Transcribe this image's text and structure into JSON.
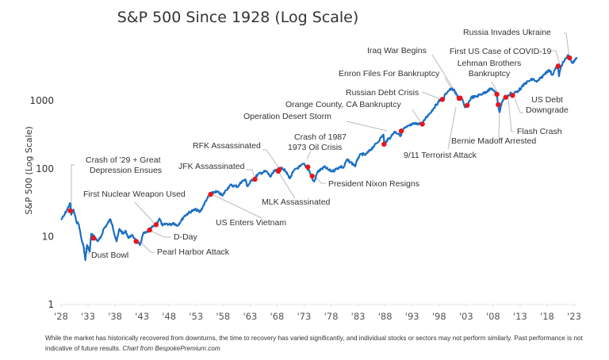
{
  "chart_data": {
    "type": "line",
    "title": "S&P 500 Since 1928 (Log Scale)",
    "xlabel": "",
    "ylabel": "S&P 500 (Log Scale)",
    "yscale": "log",
    "ylim": [
      1,
      5000
    ],
    "xlim": [
      1928,
      2023.5
    ],
    "y_ticks": [
      {
        "value": 1,
        "label": "1"
      },
      {
        "value": 10,
        "label": "10"
      },
      {
        "value": 100,
        "label": "100"
      },
      {
        "value": 1000,
        "label": "1000"
      }
    ],
    "x_ticks": [
      {
        "value": 1928,
        "label": "'28"
      },
      {
        "value": 1933,
        "label": "'33"
      },
      {
        "value": 1938,
        "label": "'38"
      },
      {
        "value": 1943,
        "label": "'43"
      },
      {
        "value": 1948,
        "label": "'48"
      },
      {
        "value": 1953,
        "label": "'53"
      },
      {
        "value": 1958,
        "label": "'58"
      },
      {
        "value": 1963,
        "label": "'63"
      },
      {
        "value": 1968,
        "label": "'68"
      },
      {
        "value": 1973,
        "label": "'73"
      },
      {
        "value": 1978,
        "label": "'78"
      },
      {
        "value": 1983,
        "label": "'83"
      },
      {
        "value": 1988,
        "label": "'88"
      },
      {
        "value": 1993,
        "label": "'93"
      },
      {
        "value": 1998,
        "label": "'98"
      },
      {
        "value": 2003,
        "label": "'03"
      },
      {
        "value": 2008,
        "label": "'08"
      },
      {
        "value": 2013,
        "label": "'13"
      },
      {
        "value": 2018,
        "label": "'18"
      },
      {
        "value": 2023,
        "label": "'23"
      }
    ],
    "grid": false,
    "series": [
      {
        "name": "S&P 500",
        "color": "#1a6fc4",
        "points": [
          [
            1928.0,
            17.7
          ],
          [
            1928.5,
            20
          ],
          [
            1929.0,
            24
          ],
          [
            1929.7,
            31
          ],
          [
            1929.9,
            21
          ],
          [
            1930.3,
            25
          ],
          [
            1930.8,
            17
          ],
          [
            1931.3,
            15
          ],
          [
            1931.8,
            9
          ],
          [
            1932.2,
            7
          ],
          [
            1932.5,
            4.5
          ],
          [
            1932.8,
            7.5
          ],
          [
            1933.3,
            6
          ],
          [
            1933.6,
            11
          ],
          [
            1934.2,
            10
          ],
          [
            1934.8,
            8.5
          ],
          [
            1935.3,
            9.5
          ],
          [
            1935.9,
            13
          ],
          [
            1936.5,
            15
          ],
          [
            1937.1,
            18
          ],
          [
            1937.5,
            15
          ],
          [
            1938.0,
            10
          ],
          [
            1938.3,
            8.5
          ],
          [
            1938.8,
            13
          ],
          [
            1939.5,
            11
          ],
          [
            1940.0,
            12
          ],
          [
            1940.5,
            9.5
          ],
          [
            1941.0,
            10.5
          ],
          [
            1941.6,
            9.5
          ],
          [
            1942.3,
            8
          ],
          [
            1942.6,
            7.5
          ],
          [
            1943.2,
            11
          ],
          [
            1943.8,
            11.5
          ],
          [
            1944.4,
            12.5
          ],
          [
            1945.0,
            14
          ],
          [
            1945.6,
            15
          ],
          [
            1946.2,
            18.5
          ],
          [
            1946.8,
            14.5
          ],
          [
            1947.5,
            15.5
          ],
          [
            1948.2,
            15
          ],
          [
            1948.8,
            16
          ],
          [
            1949.5,
            14.5
          ],
          [
            1950.2,
            17
          ],
          [
            1950.8,
            20
          ],
          [
            1951.5,
            22
          ],
          [
            1952.3,
            24
          ],
          [
            1953.0,
            25
          ],
          [
            1953.7,
            23
          ],
          [
            1954.3,
            28
          ],
          [
            1955.0,
            36
          ],
          [
            1955.7,
            42
          ],
          [
            1956.5,
            46
          ],
          [
            1957.3,
            44
          ],
          [
            1957.9,
            40
          ],
          [
            1958.5,
            48
          ],
          [
            1959.3,
            57
          ],
          [
            1960.0,
            56
          ],
          [
            1960.8,
            55
          ],
          [
            1961.5,
            66
          ],
          [
            1962.2,
            68
          ],
          [
            1962.5,
            55
          ],
          [
            1963.2,
            66
          ],
          [
            1963.9,
            74
          ],
          [
            1964.5,
            83
          ],
          [
            1965.3,
            88
          ],
          [
            1966.0,
            92
          ],
          [
            1966.8,
            76
          ],
          [
            1967.5,
            93
          ],
          [
            1968.3,
            95
          ],
          [
            1968.9,
            104
          ],
          [
            1969.5,
            93
          ],
          [
            1970.4,
            72
          ],
          [
            1970.9,
            88
          ],
          [
            1971.5,
            100
          ],
          [
            1972.3,
            108
          ],
          [
            1972.9,
            118
          ],
          [
            1973.5,
            104
          ],
          [
            1974.0,
            92
          ],
          [
            1974.6,
            68
          ],
          [
            1974.9,
            65
          ],
          [
            1975.5,
            90
          ],
          [
            1976.3,
            100
          ],
          [
            1976.9,
            106
          ],
          [
            1977.6,
            95
          ],
          [
            1978.3,
            92
          ],
          [
            1979.0,
            100
          ],
          [
            1979.8,
            108
          ],
          [
            1980.3,
            103
          ],
          [
            1980.9,
            135
          ],
          [
            1981.6,
            125
          ],
          [
            1982.5,
            110
          ],
          [
            1983.0,
            145
          ],
          [
            1983.6,
            165
          ],
          [
            1984.4,
            160
          ],
          [
            1985.0,
            180
          ],
          [
            1985.8,
            210
          ],
          [
            1986.5,
            240
          ],
          [
            1987.3,
            290
          ],
          [
            1987.7,
            320
          ],
          [
            1987.85,
            230
          ],
          [
            1988.3,
            260
          ],
          [
            1989.0,
            290
          ],
          [
            1989.7,
            350
          ],
          [
            1990.5,
            330
          ],
          [
            1990.8,
            300
          ],
          [
            1991.3,
            380
          ],
          [
            1992.0,
            410
          ],
          [
            1993.0,
            450
          ],
          [
            1994.0,
            465
          ],
          [
            1994.9,
            455
          ],
          [
            1995.5,
            560
          ],
          [
            1996.3,
            660
          ],
          [
            1997.0,
            780
          ],
          [
            1997.8,
            950
          ],
          [
            1998.5,
            1100
          ],
          [
            1998.7,
            990
          ],
          [
            1999.2,
            1280
          ],
          [
            1999.8,
            1420
          ],
          [
            2000.2,
            1500
          ],
          [
            2000.7,
            1450
          ],
          [
            2001.2,
            1250
          ],
          [
            2001.7,
            1100
          ],
          [
            2002.2,
            1080
          ],
          [
            2002.6,
            880
          ],
          [
            2002.8,
            800
          ],
          [
            2003.3,
            900
          ],
          [
            2004.0,
            1130
          ],
          [
            2004.8,
            1150
          ],
          [
            2005.5,
            1230
          ],
          [
            2006.3,
            1300
          ],
          [
            2007.0,
            1420
          ],
          [
            2007.8,
            1520
          ],
          [
            2008.3,
            1350
          ],
          [
            2008.7,
            1250
          ],
          [
            2008.9,
            900
          ],
          [
            2009.2,
            680
          ],
          [
            2009.6,
            950
          ],
          [
            2010.2,
            1150
          ],
          [
            2010.4,
            1080
          ],
          [
            2010.9,
            1200
          ],
          [
            2011.3,
            1330
          ],
          [
            2011.6,
            1200
          ],
          [
            2012.0,
            1320
          ],
          [
            2012.6,
            1400
          ],
          [
            2013.2,
            1550
          ],
          [
            2013.9,
            1800
          ],
          [
            2014.6,
            1950
          ],
          [
            2015.4,
            2100
          ],
          [
            2015.9,
            1950
          ],
          [
            2016.1,
            1900
          ],
          [
            2016.8,
            2150
          ],
          [
            2017.5,
            2450
          ],
          [
            2018.0,
            2750
          ],
          [
            2018.5,
            2800
          ],
          [
            2018.95,
            2400
          ],
          [
            2019.5,
            2950
          ],
          [
            2020.0,
            3250
          ],
          [
            2020.2,
            2300
          ],
          [
            2020.6,
            3300
          ],
          [
            2021.2,
            3900
          ],
          [
            2021.9,
            4700
          ],
          [
            2022.15,
            4400
          ],
          [
            2022.5,
            3800
          ],
          [
            2022.8,
            3600
          ],
          [
            2023.2,
            4000
          ],
          [
            2023.5,
            4400
          ]
        ]
      }
    ],
    "annotations": [
      {
        "label": "Crash of '29 + Great",
        "label2": "Depression Ensues",
        "year": 1929.7,
        "value": 24
      },
      {
        "label": "Dust Bowl",
        "label2": "",
        "year": 1934.0,
        "value": 9.5
      },
      {
        "label": "First Nuclear Weapon Used",
        "label2": "",
        "year": 1945.6,
        "value": 15
      },
      {
        "label": "D-Day",
        "label2": "",
        "year": 1944.4,
        "value": 12.5
      },
      {
        "label": "Pearl Harbor Attack",
        "label2": "",
        "year": 1941.9,
        "value": 8.5
      },
      {
        "label": "US Enters Vietnam",
        "label2": "",
        "year": 1955.7,
        "value": 42
      },
      {
        "label": "JFK Assassinated",
        "label2": "",
        "year": 1963.9,
        "value": 70
      },
      {
        "label": "RFK Assassinated",
        "label2": "",
        "year": 1968.4,
        "value": 97
      },
      {
        "label": "MLK Assassinated",
        "label2": "",
        "year": 1968.2,
        "value": 92
      },
      {
        "label": "Crash of 1987",
        "label2": "",
        "year": 1987.8,
        "value": 230
      },
      {
        "label": "1973 Oil Crisis",
        "label2": "",
        "year": 1973.7,
        "value": 106
      },
      {
        "label": "President Nixon Resigns",
        "label2": "",
        "year": 1974.5,
        "value": 78
      },
      {
        "label": "Operation Desert Storm",
        "label2": "",
        "year": 1991.0,
        "value": 360
      },
      {
        "label": "Orange County, CA Bankruptcy",
        "label2": "",
        "year": 1994.9,
        "value": 455
      },
      {
        "label": "Russian Debt Crisis",
        "label2": "",
        "year": 1998.6,
        "value": 1050
      },
      {
        "label": "Enron Files For Bankruptcy",
        "label2": "",
        "year": 2001.9,
        "value": 1100
      },
      {
        "label": "Iraq War Begins",
        "label2": "",
        "year": 2003.2,
        "value": 860
      },
      {
        "label": "9/11 Terrorist Attack",
        "label2": "",
        "year": 2001.7,
        "value": 1090
      },
      {
        "label": "Lehman Brothers",
        "label2": "Bankruptcy",
        "year": 2008.7,
        "value": 1250
      },
      {
        "label": "Bernie Madoff Arrested",
        "label2": "",
        "year": 2008.95,
        "value": 880
      },
      {
        "label": "Flash Crash",
        "label2": "",
        "year": 2010.35,
        "value": 1130
      },
      {
        "label": "US Debt",
        "label2": "Downgrade",
        "year": 2011.6,
        "value": 1200
      },
      {
        "label": "First US Case of COVID-19",
        "label2": "",
        "year": 2020.05,
        "value": 3250
      },
      {
        "label": "Russia Invades Ukraine",
        "label2": "",
        "year": 2022.15,
        "value": 4300
      }
    ]
  },
  "colors": {
    "line": "#1a6fc4",
    "marker": "#e8161b",
    "leader": "#bbbbbb",
    "text": "#333333"
  },
  "footnote": {
    "text": "While the market has historically recovered from downturns, the time to recovery has varied significantly, and individual stocks or sectors may not perform similarly. Past performance is not indicative of future results.",
    "source": "Chart from BespokePremium.com"
  }
}
